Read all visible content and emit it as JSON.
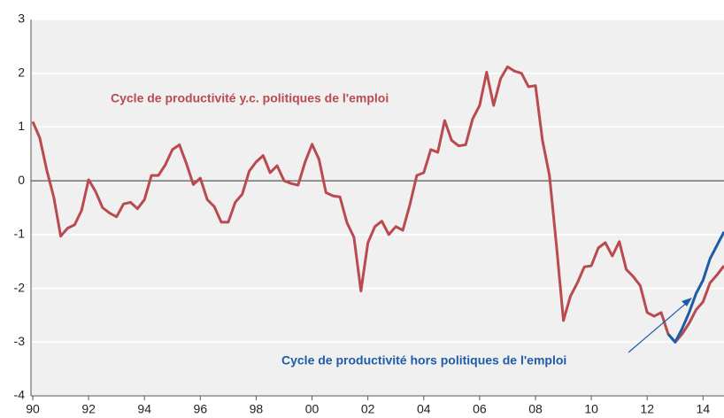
{
  "chart_data": {
    "type": "line",
    "annotations": [
      "Cycle de productivité y.c. politiques de l'emploi",
      "Cycle de productivité hors politiques de l'emploi"
    ],
    "x": [
      1990,
      1990.25,
      1990.5,
      1990.75,
      1991,
      1991.25,
      1991.5,
      1991.75,
      1992,
      1992.25,
      1992.5,
      1992.75,
      1993,
      1993.25,
      1993.5,
      1993.75,
      1994,
      1994.25,
      1994.5,
      1994.75,
      1995,
      1995.25,
      1995.5,
      1995.75,
      1996,
      1996.25,
      1996.5,
      1996.75,
      1997,
      1997.25,
      1997.5,
      1997.75,
      1998,
      1998.25,
      1998.5,
      1998.75,
      1999,
      1999.25,
      1999.5,
      1999.75,
      2000,
      2000.25,
      2000.5,
      2000.75,
      2001,
      2001.25,
      2001.5,
      2001.75,
      2002,
      2002.25,
      2002.5,
      2002.75,
      2003,
      2003.25,
      2003.5,
      2003.75,
      2004,
      2004.25,
      2004.5,
      2004.75,
      2005,
      2005.25,
      2005.5,
      2005.75,
      2006,
      2006.25,
      2006.5,
      2006.75,
      2007,
      2007.25,
      2007.5,
      2007.75,
      2008,
      2008.25,
      2008.5,
      2008.75,
      2009,
      2009.25,
      2009.5,
      2009.75,
      2010,
      2010.25,
      2010.5,
      2010.75,
      2011,
      2011.25,
      2011.5,
      2011.75,
      2012,
      2012.25,
      2012.5,
      2012.75,
      2013,
      2013.25,
      2013.5,
      2013.75,
      2014,
      2014.25,
      2014.5,
      2014.75
    ],
    "series": [
      {
        "name": "Cycle de productivité y.c. politiques de l'emploi",
        "color": "#b94a50",
        "values": [
          1.1,
          0.8,
          0.2,
          -0.3,
          -1.03,
          -0.88,
          -0.82,
          -0.55,
          0.02,
          -0.2,
          -0.5,
          -0.6,
          -0.67,
          -0.43,
          -0.4,
          -0.52,
          -0.35,
          0.1,
          0.1,
          0.3,
          0.58,
          0.67,
          0.32,
          -0.07,
          0.05,
          -0.35,
          -0.48,
          -0.77,
          -0.77,
          -0.4,
          -0.25,
          0.18,
          0.35,
          0.47,
          0.15,
          0.28,
          0.0,
          -0.05,
          -0.08,
          0.35,
          0.68,
          0.4,
          -0.22,
          -0.28,
          -0.3,
          -0.78,
          -1.05,
          -2.05,
          -1.15,
          -0.85,
          -0.75,
          -1.0,
          -0.85,
          -0.92,
          -0.45,
          0.1,
          0.15,
          0.58,
          0.53,
          1.12,
          0.75,
          0.65,
          0.67,
          1.15,
          1.4,
          2.02,
          1.4,
          1.9,
          2.12,
          2.04,
          2.0,
          1.75,
          1.77,
          0.75,
          0.1,
          -1.2,
          -2.6,
          -2.15,
          -1.9,
          -1.6,
          -1.58,
          -1.25,
          -1.15,
          -1.4,
          -1.13,
          -1.65,
          -1.78,
          -1.95,
          -2.45,
          -2.52,
          -2.45,
          -2.85,
          -3.0,
          -2.85,
          -2.65,
          -2.4,
          -2.25,
          -1.9,
          -1.75,
          -1.58
        ]
      },
      {
        "name": "Cycle de productivité hors politiques de l'emploi",
        "color": "#1f5ca8",
        "values": [
          null,
          null,
          null,
          null,
          null,
          null,
          null,
          null,
          null,
          null,
          null,
          null,
          null,
          null,
          null,
          null,
          null,
          null,
          null,
          null,
          null,
          null,
          null,
          null,
          null,
          null,
          null,
          null,
          null,
          null,
          null,
          null,
          null,
          null,
          null,
          null,
          null,
          null,
          null,
          null,
          null,
          null,
          null,
          null,
          null,
          null,
          null,
          null,
          null,
          null,
          null,
          null,
          null,
          null,
          null,
          null,
          null,
          null,
          null,
          null,
          null,
          null,
          null,
          null,
          null,
          null,
          null,
          null,
          null,
          null,
          null,
          null,
          null,
          null,
          null,
          null,
          null,
          null,
          null,
          null,
          null,
          null,
          null,
          null,
          null,
          null,
          null,
          null,
          null,
          null,
          null,
          -2.85,
          -3.0,
          -2.75,
          -2.45,
          -2.1,
          -1.85,
          -1.45,
          -1.2,
          -0.95
        ]
      }
    ],
    "xlim": [
      1990,
      2014.75
    ],
    "xticks": [
      {
        "value": 1990,
        "label": "90"
      },
      {
        "value": 1992,
        "label": "92"
      },
      {
        "value": 1994,
        "label": "94"
      },
      {
        "value": 1996,
        "label": "96"
      },
      {
        "value": 1998,
        "label": "98"
      },
      {
        "value": 2000,
        "label": "00"
      },
      {
        "value": 2002,
        "label": "02"
      },
      {
        "value": 2004,
        "label": "04"
      },
      {
        "value": 2006,
        "label": "06"
      },
      {
        "value": 2008,
        "label": "08"
      },
      {
        "value": 2010,
        "label": "10"
      },
      {
        "value": 2012,
        "label": "12"
      },
      {
        "value": 2014,
        "label": "14"
      }
    ],
    "ylim": [
      -4,
      3
    ],
    "yticks": [
      -4,
      -3,
      -2,
      -1,
      0,
      1,
      2,
      3
    ],
    "grid": true
  }
}
